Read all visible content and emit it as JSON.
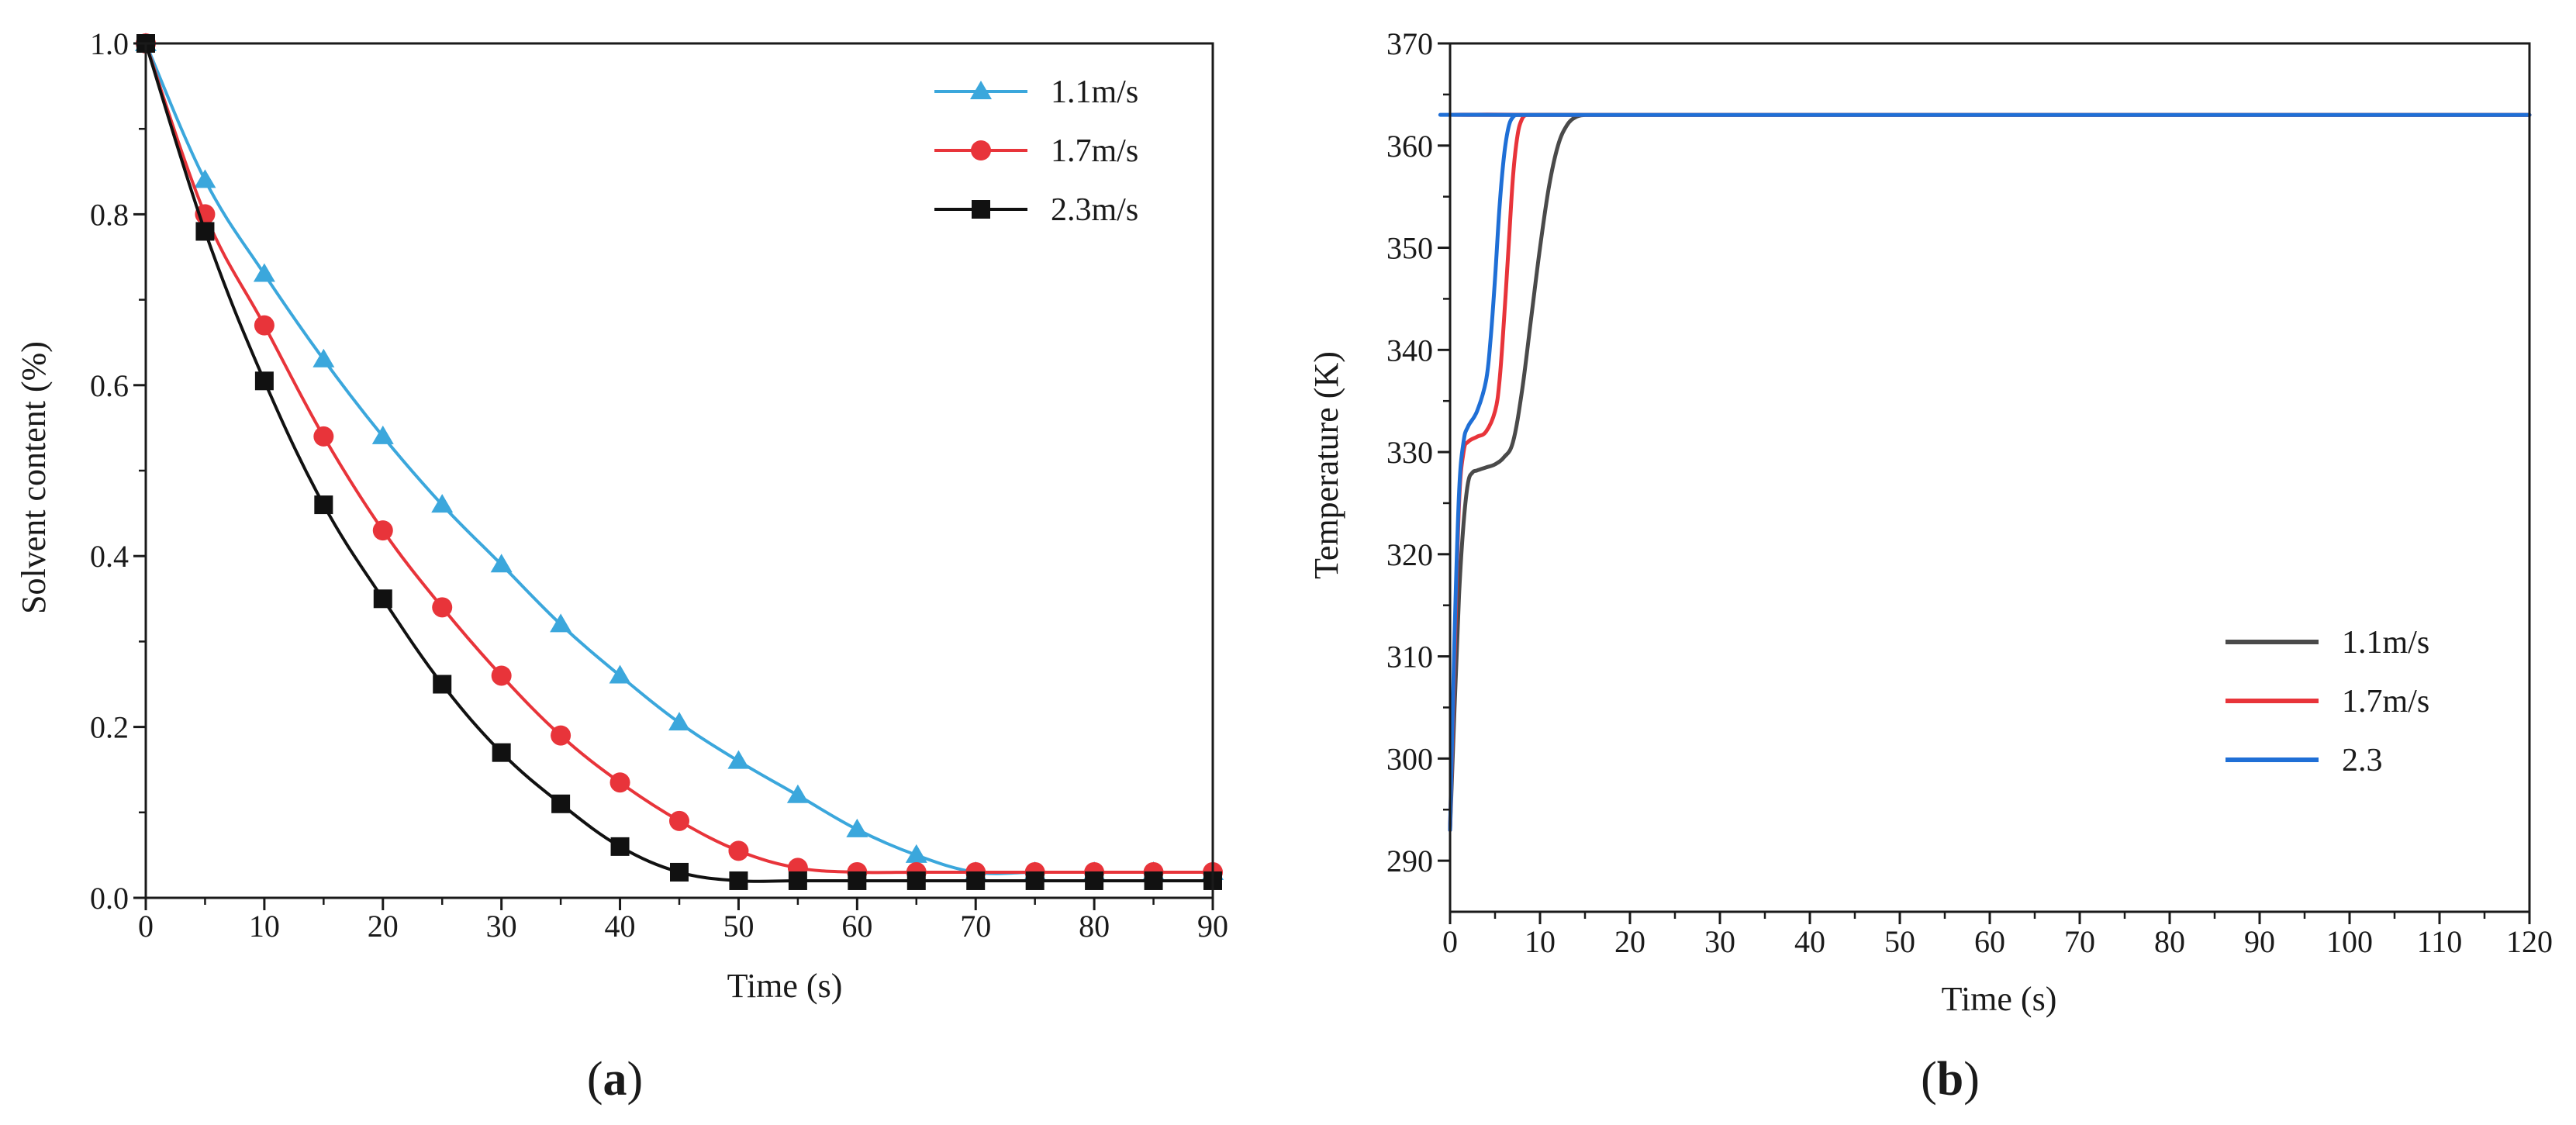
{
  "figure": {
    "panel_a_label": {
      "open": "(",
      "letter": "a",
      "close": ")"
    },
    "panel_b_label": {
      "open": "(",
      "letter": "b",
      "close": ")"
    }
  },
  "chart_data": [
    {
      "id": "a",
      "type": "line",
      "title": "",
      "xlabel": "Time (s)",
      "ylabel": "Solvent content (%)",
      "xlim": [
        0,
        90
      ],
      "ylim": [
        0,
        1.0
      ],
      "xticks": [
        0,
        10,
        20,
        30,
        40,
        50,
        60,
        70,
        80,
        90
      ],
      "yticks": [
        0.0,
        0.2,
        0.4,
        0.6,
        0.8,
        1.0
      ],
      "ytick_labels": [
        "0.0",
        "0.2",
        "0.4",
        "0.6",
        "0.8",
        "1.0"
      ],
      "grid": false,
      "legend_position": "top-right",
      "series": [
        {
          "name": "1.1m/s",
          "color": "#3ba7dc",
          "marker": "triangle",
          "x": [
            0,
            5,
            10,
            15,
            20,
            25,
            30,
            35,
            40,
            45,
            50,
            55,
            60,
            65,
            70,
            75,
            80,
            85,
            90
          ],
          "values": [
            1.0,
            0.84,
            0.73,
            0.63,
            0.54,
            0.46,
            0.39,
            0.32,
            0.26,
            0.205,
            0.16,
            0.12,
            0.08,
            0.05,
            0.03,
            0.03,
            0.03,
            0.03,
            0.03
          ]
        },
        {
          "name": "1.7m/s",
          "color": "#e8343a",
          "marker": "circle",
          "x": [
            0,
            5,
            10,
            15,
            20,
            25,
            30,
            35,
            40,
            45,
            50,
            55,
            60,
            65,
            70,
            75,
            80,
            85,
            90
          ],
          "values": [
            1.0,
            0.8,
            0.67,
            0.54,
            0.43,
            0.34,
            0.26,
            0.19,
            0.135,
            0.09,
            0.055,
            0.035,
            0.03,
            0.03,
            0.03,
            0.03,
            0.03,
            0.03,
            0.03
          ]
        },
        {
          "name": "2.3m/s",
          "color": "#111111",
          "marker": "square",
          "x": [
            0,
            5,
            10,
            15,
            20,
            25,
            30,
            35,
            40,
            45,
            50,
            55,
            60,
            65,
            70,
            75,
            80,
            85,
            90
          ],
          "values": [
            1.0,
            0.78,
            0.605,
            0.46,
            0.35,
            0.25,
            0.17,
            0.11,
            0.06,
            0.03,
            0.02,
            0.02,
            0.02,
            0.02,
            0.02,
            0.02,
            0.02,
            0.02,
            0.02
          ]
        }
      ]
    },
    {
      "id": "b",
      "type": "line",
      "title": "",
      "xlabel": "Time (s)",
      "ylabel": "Temperature (K)",
      "xlim": [
        0,
        120
      ],
      "ylim": [
        285,
        370
      ],
      "xticks": [
        0,
        10,
        20,
        30,
        40,
        50,
        60,
        70,
        80,
        90,
        100,
        110,
        120
      ],
      "yticks": [
        290,
        300,
        310,
        320,
        330,
        340,
        350,
        360,
        370
      ],
      "grid": false,
      "legend_position": "bottom-right",
      "series": [
        {
          "name": "1.1m/s",
          "color": "#4a4a4a",
          "x": [
            0,
            0.5,
            1,
            1.5,
            2,
            2.5,
            3,
            4,
            5,
            6,
            7,
            8,
            9,
            10,
            11,
            12,
            13,
            14,
            15,
            16,
            120
          ],
          "values": [
            293,
            305,
            316,
            323,
            327,
            328,
            328.2,
            328.5,
            328.8,
            329.5,
            331,
            336,
            343,
            350,
            356,
            360,
            362,
            362.8,
            363,
            363,
            363
          ]
        },
        {
          "name": "1.7m/s",
          "color": "#e8343a",
          "x": [
            0,
            0.5,
            1,
            1.5,
            2,
            3,
            4,
            5,
            5.5,
            6,
            6.5,
            7,
            7.5,
            8,
            8.5,
            9,
            120
          ],
          "values": [
            293,
            310,
            325,
            330,
            331,
            331.5,
            332,
            334,
            337,
            343,
            350,
            357,
            361,
            362.6,
            363,
            363,
            363
          ]
        },
        {
          "name": "2.3",
          "color": "#1f6fd6",
          "x": [
            0,
            0.5,
            1,
            1.5,
            2,
            3,
            4,
            4.5,
            5,
            5.5,
            6,
            6.5,
            7,
            7.5,
            8,
            120
          ],
          "values": [
            293,
            312,
            326,
            331,
            332.5,
            334,
            337,
            341,
            347,
            354,
            359,
            361.8,
            362.8,
            363,
            363,
            363
          ]
        }
      ]
    }
  ]
}
